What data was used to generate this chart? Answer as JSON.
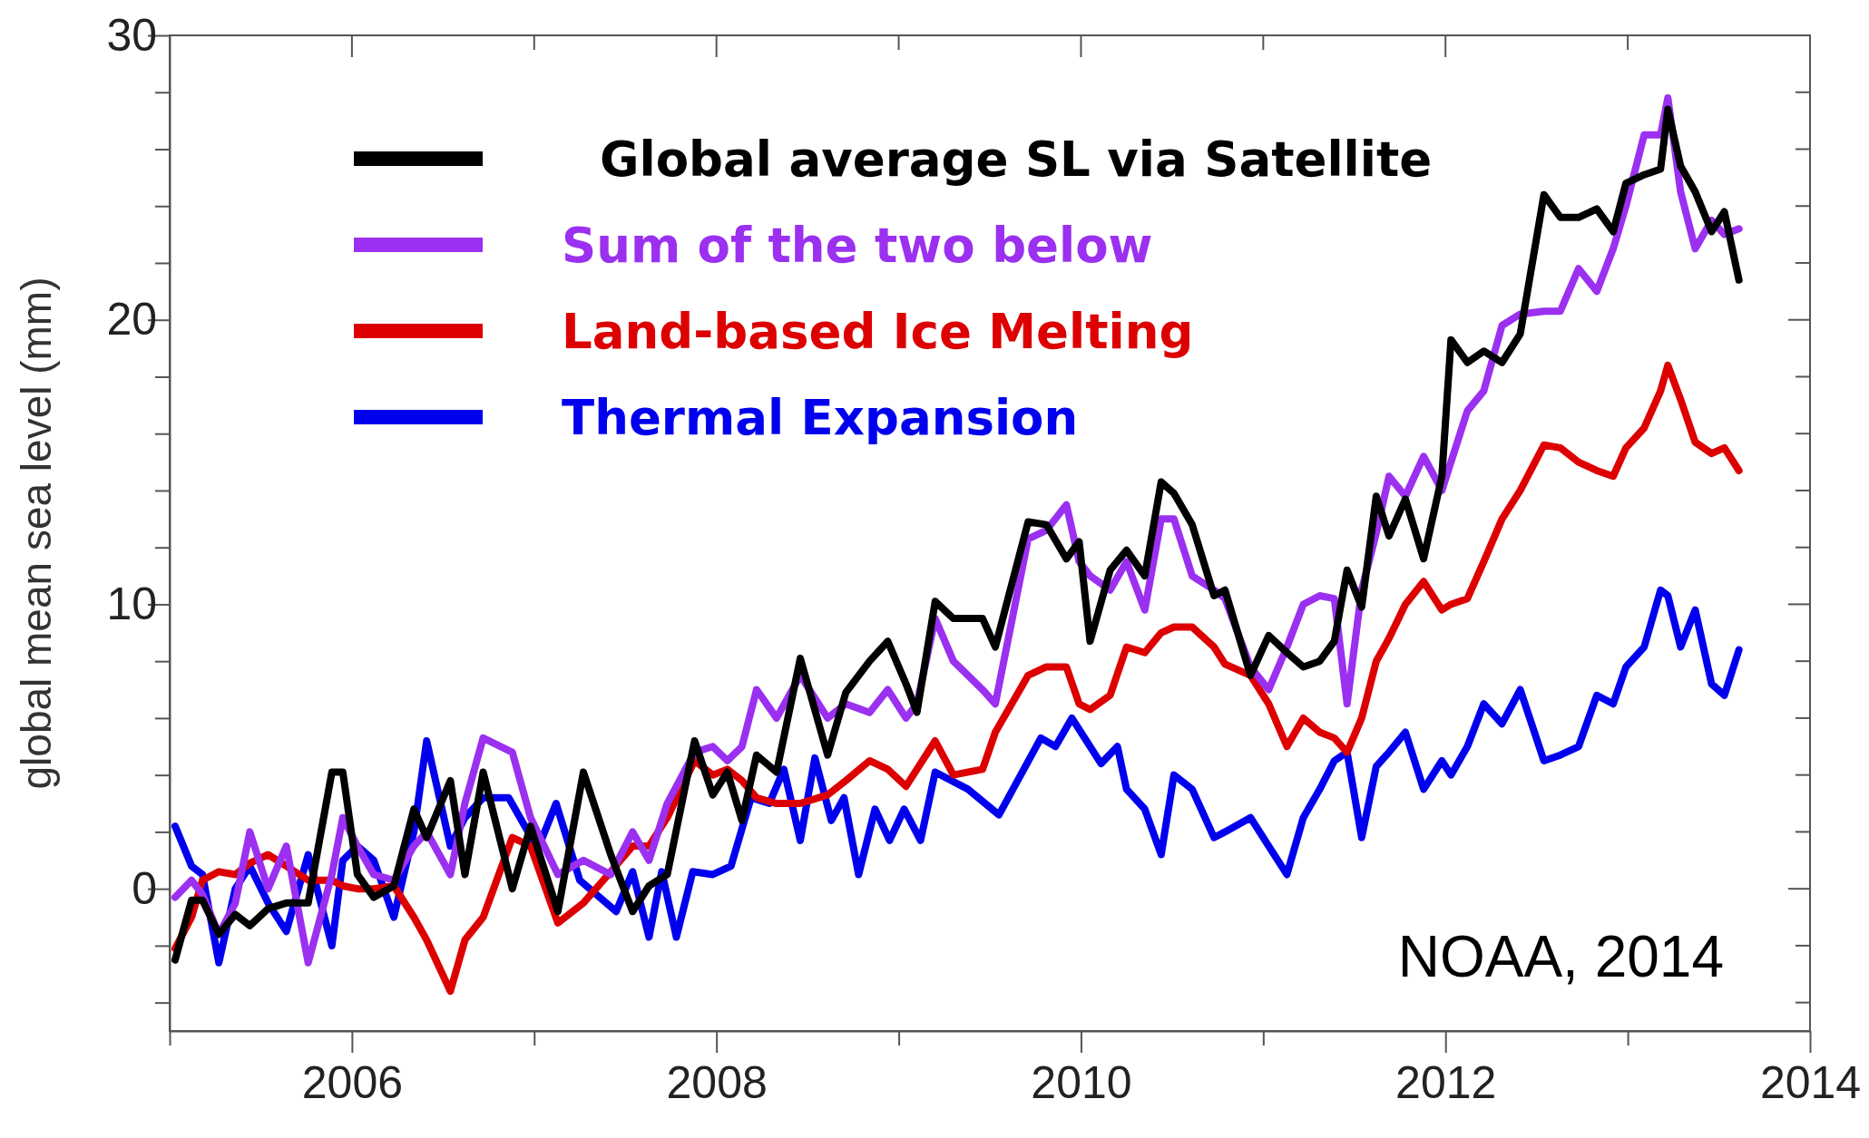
{
  "chart_data": {
    "type": "line",
    "ylabel": "global mean sea level (mm)",
    "x": [
      2005.03,
      2005.12,
      2005.18,
      2005.27,
      2005.36,
      2005.44,
      2005.54,
      2005.64,
      2005.76,
      2005.89,
      2005.95,
      2006.03,
      2006.12,
      2006.23,
      2006.34,
      2006.41,
      2006.54,
      2006.62,
      2006.72,
      2006.88,
      2006.98,
      2007.13,
      2007.27,
      2007.42,
      2007.54,
      2007.63,
      2007.73,
      2007.88,
      2007.98,
      2008.06,
      2008.14,
      2008.22,
      2008.33,
      2008.46,
      2008.61,
      2008.71,
      2008.84,
      2008.94,
      2009.04,
      2009.1,
      2009.2,
      2009.3,
      2009.46,
      2009.53,
      2009.71,
      2009.81,
      2009.92,
      2009.99,
      2010.05,
      2010.16,
      2010.25,
      2010.35,
      2010.44,
      2010.51,
      2010.61,
      2010.73,
      2010.79,
      2010.93,
      2011.03,
      2011.13,
      2011.22,
      2011.31,
      2011.39,
      2011.46,
      2011.54,
      2011.62,
      2011.69,
      2011.78,
      2011.88,
      2011.98,
      2012.03,
      2012.12,
      2012.21,
      2012.31,
      2012.41,
      2012.54,
      2012.63,
      2012.73,
      2012.83,
      2012.92,
      2012.99,
      2013.09,
      2013.18,
      2013.22,
      2013.29,
      2013.37,
      2013.46,
      2013.53,
      2013.61
    ],
    "series": [
      {
        "name": "Thermal Expansion",
        "color": "#0000ee",
        "x": [
          2005.03,
          2005.12,
          2005.18,
          2005.27,
          2005.36,
          2005.44,
          2005.54,
          2005.64,
          2005.76,
          2005.89,
          2005.95,
          2006.03,
          2006.12,
          2006.23,
          2006.34,
          2006.41,
          2006.54,
          2006.62,
          2006.72,
          2006.86,
          2007.02,
          2007.12,
          2007.25,
          2007.45,
          2007.54,
          2007.63,
          2007.7,
          2007.78,
          2007.87,
          2007.98,
          2008.08,
          2008.19,
          2008.29,
          2008.37,
          2008.46,
          2008.54,
          2008.63,
          2008.7,
          2008.78,
          2008.87,
          2008.95,
          2009.03,
          2009.12,
          2009.2,
          2009.38,
          2009.55,
          2009.78,
          2009.86,
          2009.95,
          2010.11,
          2010.2,
          2010.25,
          2010.35,
          2010.44,
          2010.51,
          2010.61,
          2010.73,
          2010.79,
          2010.93,
          2011.03,
          2011.13,
          2011.22,
          2011.31,
          2011.39,
          2011.46,
          2011.54,
          2011.62,
          2011.69,
          2011.78,
          2011.88,
          2011.98,
          2012.03,
          2012.12,
          2012.21,
          2012.31,
          2012.41,
          2012.54,
          2012.63,
          2012.73,
          2012.83,
          2012.92,
          2012.99,
          2013.09,
          2013.18,
          2013.22,
          2013.29,
          2013.37,
          2013.46,
          2013.53,
          2013.61
        ],
        "values": [
          2.2,
          0.8,
          0.5,
          -2.6,
          0,
          0.8,
          -0.5,
          -1.5,
          1.2,
          -2.0,
          1.0,
          1.5,
          1.0,
          -1.0,
          2.0,
          5.2,
          1.5,
          2.5,
          3.2,
          3.2,
          1.4,
          3.0,
          0.3,
          -0.8,
          0.6,
          -1.7,
          0.6,
          -1.7,
          0.6,
          0.5,
          0.8,
          3.2,
          3.0,
          4.2,
          1.7,
          4.6,
          2.4,
          3.2,
          0.5,
          2.8,
          1.7,
          2.8,
          1.7,
          4.1,
          3.5,
          2.6,
          5.3,
          5.0,
          6.0,
          4.4,
          5.0,
          3.5,
          2.8,
          1.2,
          4.0,
          3.5,
          1.8,
          2.0,
          2.5,
          1.5,
          0.5,
          2.5,
          3.5,
          4.5,
          4.8,
          1.8,
          4.3,
          4.8,
          5.5,
          3.5,
          4.5,
          4.0,
          5.0,
          6.5,
          5.8,
          7.0,
          4.5,
          4.7,
          5.0,
          6.8,
          6.5,
          7.8,
          8.5,
          10.5,
          10.3,
          8.5,
          9.8,
          7.2,
          6.8,
          8.4
        ]
      },
      {
        "name": "Land-based Ice Melting",
        "color": "#dd0000",
        "values": [
          -2.1,
          -1.0,
          0.3,
          0.6,
          0.5,
          0.9,
          1.2,
          0.8,
          0.3,
          0.3,
          0.1,
          0.0,
          0.0,
          0.1,
          -1.0,
          -1.8,
          -3.6,
          -1.8,
          -1.0,
          1.8,
          1.5,
          -1.2,
          -0.5,
          0.6,
          1.5,
          1.5,
          2.5,
          4.5,
          4.0,
          4.2,
          3.8,
          3.2,
          3.0,
          3.0,
          3.3,
          3.8,
          4.5,
          4.2,
          3.6,
          4.2,
          5.2,
          4.0,
          4.2,
          5.5,
          7.5,
          7.8,
          7.8,
          6.5,
          6.3,
          6.8,
          8.5,
          8.3,
          9.0,
          9.2,
          9.2,
          8.5,
          7.9,
          7.5,
          6.5,
          5.0,
          6.0,
          5.5,
          5.3,
          4.8,
          6.0,
          8.0,
          8.8,
          10.0,
          10.8,
          9.8,
          10.0,
          10.2,
          11.5,
          13.0,
          14.0,
          15.6,
          15.5,
          15.0,
          14.7,
          14.5,
          15.5,
          16.2,
          17.5,
          18.4,
          17.2,
          15.7,
          15.3,
          15.5,
          14.7
        ]
      },
      {
        "name": "Sum of the two below",
        "color": "#9b30f0",
        "values": [
          -0.3,
          0.3,
          -0.2,
          -1.6,
          -0.5,
          2.0,
          0,
          1.5,
          -2.6,
          0.5,
          2.5,
          1.5,
          0.5,
          0.3,
          1.5,
          2.0,
          0.5,
          3.0,
          5.3,
          4.8,
          2.5,
          0.5,
          1.0,
          0.5,
          2.0,
          1.0,
          3.0,
          4.8,
          5.0,
          4.5,
          5.0,
          7.0,
          6.0,
          7.5,
          6.0,
          6.5,
          6.2,
          7.0,
          6.0,
          6.5,
          9.5,
          8.0,
          7.0,
          6.5,
          12.3,
          12.6,
          13.5,
          11.5,
          11.0,
          10.5,
          11.5,
          9.8,
          13.0,
          13.0,
          11.0,
          10.5,
          10.2,
          7.8,
          7.0,
          8.5,
          10.0,
          10.3,
          10.2,
          6.5,
          10.5,
          12.5,
          14.5,
          13.8,
          15.2,
          14.0,
          15.0,
          16.8,
          17.5,
          19.8,
          20.2,
          20.3,
          20.3,
          21.8,
          21.0,
          22.5,
          24.0,
          26.5,
          26.5,
          27.8,
          24.5,
          22.5,
          23.5,
          23.0,
          23.2
        ]
      },
      {
        "name": "Global average SL via Satellite",
        "color": "#000000",
        "values": [
          -2.5,
          -0.4,
          -0.4,
          -1.6,
          -0.9,
          -1.3,
          -0.7,
          -0.5,
          -0.5,
          4.1,
          4.1,
          0.5,
          -0.3,
          0.1,
          2.8,
          1.8,
          3.8,
          0.5,
          4.1,
          0,
          2.2,
          -0.8,
          4.1,
          1.2,
          -0.8,
          0.1,
          0.5,
          5.2,
          3.3,
          4.1,
          2.4,
          4.7,
          4.1,
          8.1,
          4.7,
          6.9,
          8.0,
          8.7,
          7.2,
          6.2,
          10.1,
          9.5,
          9.5,
          8.5,
          12.9,
          12.8,
          11.6,
          12.2,
          8.7,
          11.2,
          11.9,
          11.0,
          14.3,
          13.9,
          12.8,
          10.3,
          10.5,
          7.5,
          8.9,
          8.3,
          7.8,
          8.0,
          8.7,
          11.2,
          9.9,
          13.8,
          12.4,
          13.7,
          11.6,
          14.5,
          19.3,
          18.5,
          18.9,
          18.5,
          19.5,
          24.4,
          23.6,
          23.6,
          23.9,
          23.1,
          24.8,
          25.1,
          25.3,
          27.4,
          25.4,
          24.5,
          23.1,
          23.8,
          21.4
        ]
      }
    ],
    "xlim": [
      2005,
      2014
    ],
    "xticks": [
      {
        "value": 2005,
        "label": null
      },
      2006,
      {
        "value": 2007,
        "label": null
      },
      2008,
      {
        "value": 2009,
        "label": null
      },
      2010,
      {
        "value": 2011,
        "label": null
      },
      2012,
      {
        "value": 2013,
        "label": null
      },
      2014
    ],
    "ylim": [
      -5,
      30
    ],
    "yticks": [
      {
        "value": -4,
        "label": null
      },
      {
        "value": -2,
        "label": null
      },
      0,
      {
        "value": 2,
        "label": null
      },
      {
        "value": 4,
        "label": null
      },
      {
        "value": 6,
        "label": null
      },
      {
        "value": 8,
        "label": null
      },
      10,
      {
        "value": 12,
        "label": null
      },
      {
        "value": 14,
        "label": null
      },
      {
        "value": 16,
        "label": null
      },
      {
        "value": 18,
        "label": null
      },
      20,
      {
        "value": 22,
        "label": null
      },
      {
        "value": 24,
        "label": null
      },
      {
        "value": 26,
        "label": null
      },
      {
        "value": 28,
        "label": null
      },
      30
    ],
    "legend": "top left",
    "grid": false,
    "line_style": "solid",
    "marker": "none",
    "annotations": [
      "NOAA, 2014"
    ]
  }
}
